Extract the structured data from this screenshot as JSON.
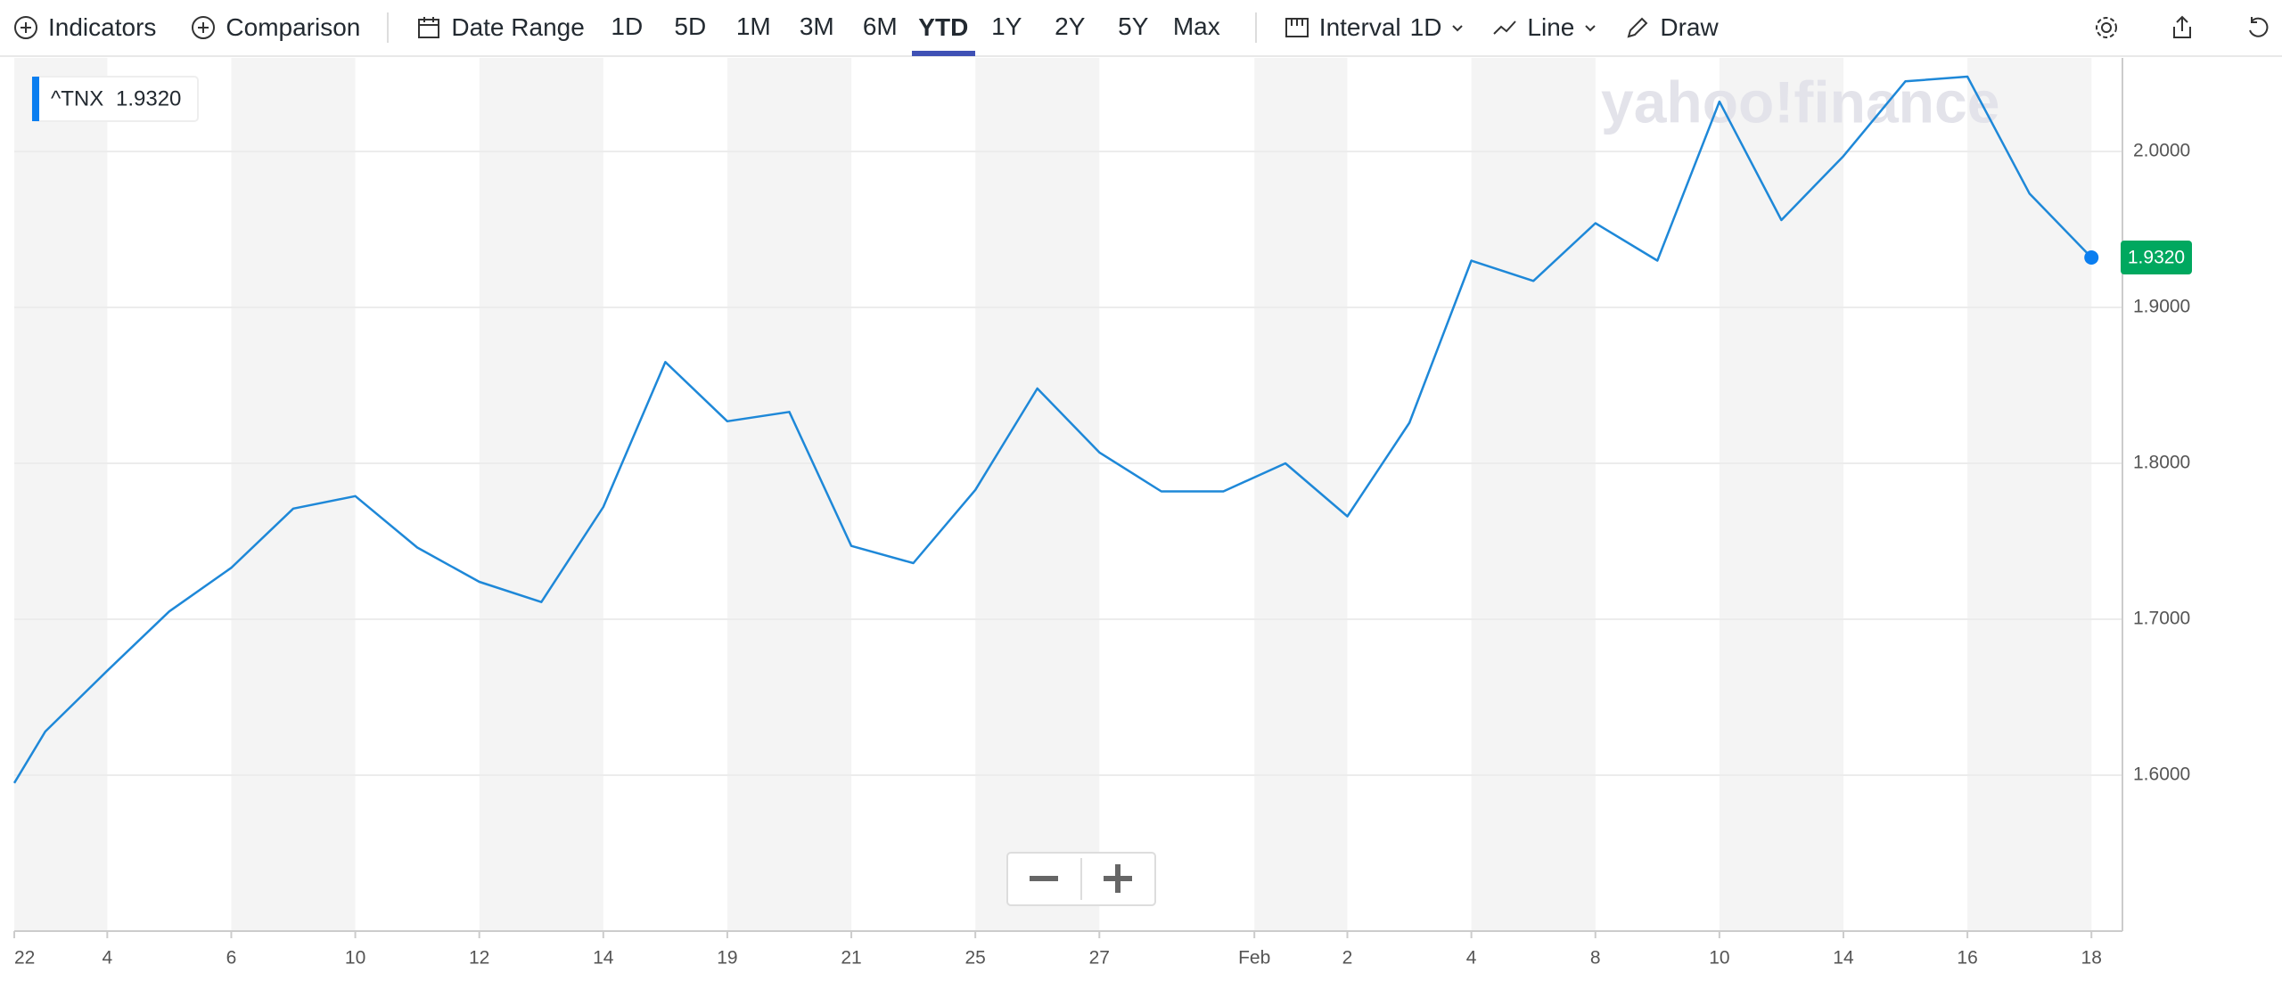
{
  "toolbar": {
    "indicators": "Indicators",
    "comparison": "Comparison",
    "date_range": "Date Range",
    "ranges": [
      "1D",
      "5D",
      "1M",
      "3M",
      "6M",
      "YTD",
      "1Y",
      "2Y",
      "5Y",
      "Max"
    ],
    "selected_range": "YTD",
    "interval": "Interval",
    "interval_value": "1D",
    "chart_style": "Line",
    "draw": "Draw"
  },
  "chart_data": {
    "type": "line",
    "watermark": "yahoo!finance",
    "x": [
      -0.5,
      0,
      1,
      2,
      3,
      4,
      5,
      6,
      7,
      8,
      9,
      10,
      11,
      12,
      13,
      14,
      15,
      16,
      17,
      18,
      19,
      20,
      21,
      22,
      23,
      24,
      25,
      26,
      27,
      28,
      29,
      30,
      31,
      32,
      33
    ],
    "series": [
      {
        "name": "^TNX",
        "color": "#1e88d8",
        "last_value_label": "1.9320",
        "values": [
          1.595,
          1.628,
          1.667,
          1.705,
          1.733,
          1.771,
          1.779,
          1.746,
          1.724,
          1.711,
          1.772,
          1.865,
          1.827,
          1.833,
          1.747,
          1.736,
          1.783,
          1.848,
          1.807,
          1.782,
          1.782,
          1.8,
          1.766,
          1.826,
          1.93,
          1.917,
          1.954,
          1.93,
          2.032,
          1.956,
          1.997,
          2.045,
          2.048,
          1.973,
          1.932
        ]
      }
    ],
    "xlim": [
      -0.5,
      33.5
    ],
    "xticks": [
      {
        "value": -0.5,
        "label": "22"
      },
      {
        "value": 1,
        "label": "4"
      },
      {
        "value": 3,
        "label": "6"
      },
      {
        "value": 5,
        "label": "10"
      },
      {
        "value": 7,
        "label": "12"
      },
      {
        "value": 9,
        "label": "14"
      },
      {
        "value": 11,
        "label": "19"
      },
      {
        "value": 13,
        "label": "21"
      },
      {
        "value": 15,
        "label": "25"
      },
      {
        "value": 17,
        "label": "27"
      },
      {
        "value": 19.5,
        "label": "Feb"
      },
      {
        "value": 21,
        "label": "2"
      },
      {
        "value": 23,
        "label": "4"
      },
      {
        "value": 25,
        "label": "8"
      },
      {
        "value": 27,
        "label": "10"
      },
      {
        "value": 29,
        "label": "14"
      },
      {
        "value": 31,
        "label": "16"
      },
      {
        "value": 33,
        "label": "18"
      }
    ],
    "ylim": [
      1.5,
      2.06
    ],
    "yticks": [
      {
        "value": 1.6,
        "label": "1.6000"
      },
      {
        "value": 1.7,
        "label": "1.7000"
      },
      {
        "value": 1.8,
        "label": "1.8000"
      },
      {
        "value": 1.9,
        "label": "1.9000"
      },
      {
        "value": 2.0,
        "label": "2.0000"
      }
    ],
    "grid": true,
    "tag_color": "#00a85f"
  }
}
